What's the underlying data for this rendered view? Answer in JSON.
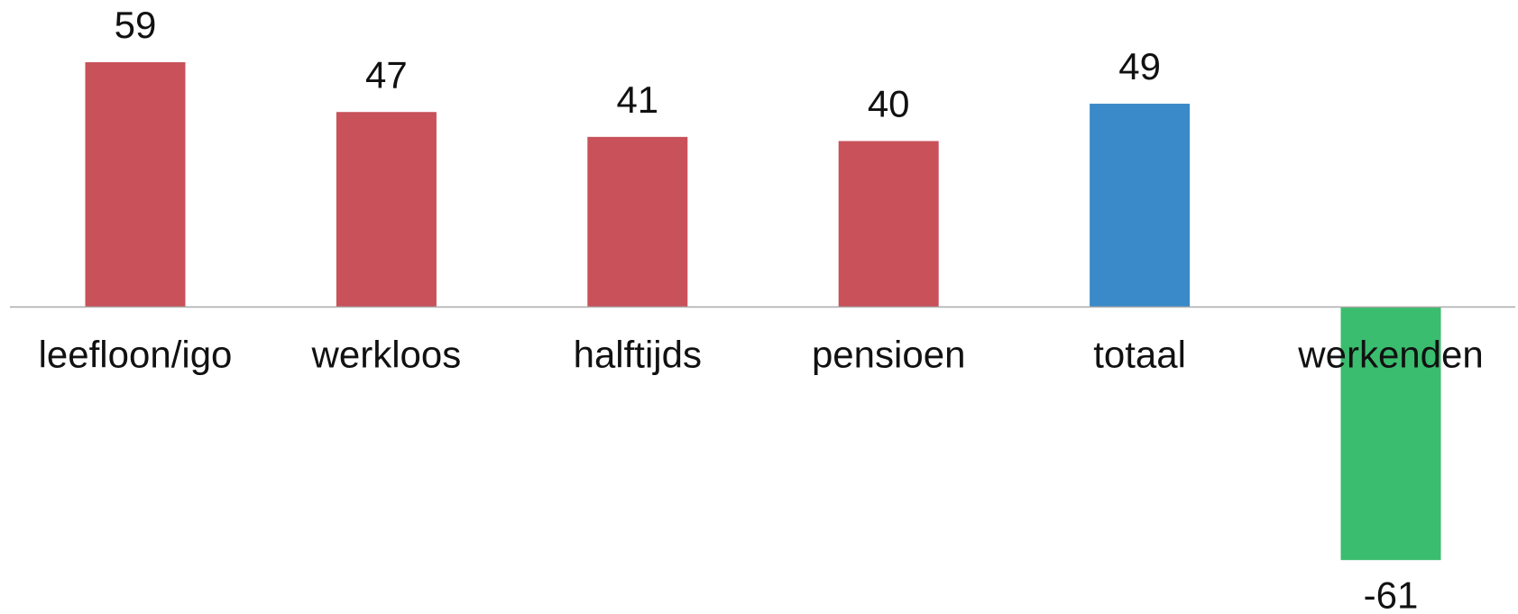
{
  "chart_data": {
    "type": "bar",
    "categories": [
      "leefloon/igo",
      "werkloos",
      "halftijds",
      "pensioen",
      "totaal",
      "werkenden"
    ],
    "values": [
      59,
      47,
      41,
      40,
      49,
      -61
    ],
    "colors": [
      "#c8515a",
      "#c8515a",
      "#c8515a",
      "#c8515a",
      "#3a8ac9",
      "#3abd6e"
    ],
    "ylim": [
      -74,
      74
    ]
  }
}
